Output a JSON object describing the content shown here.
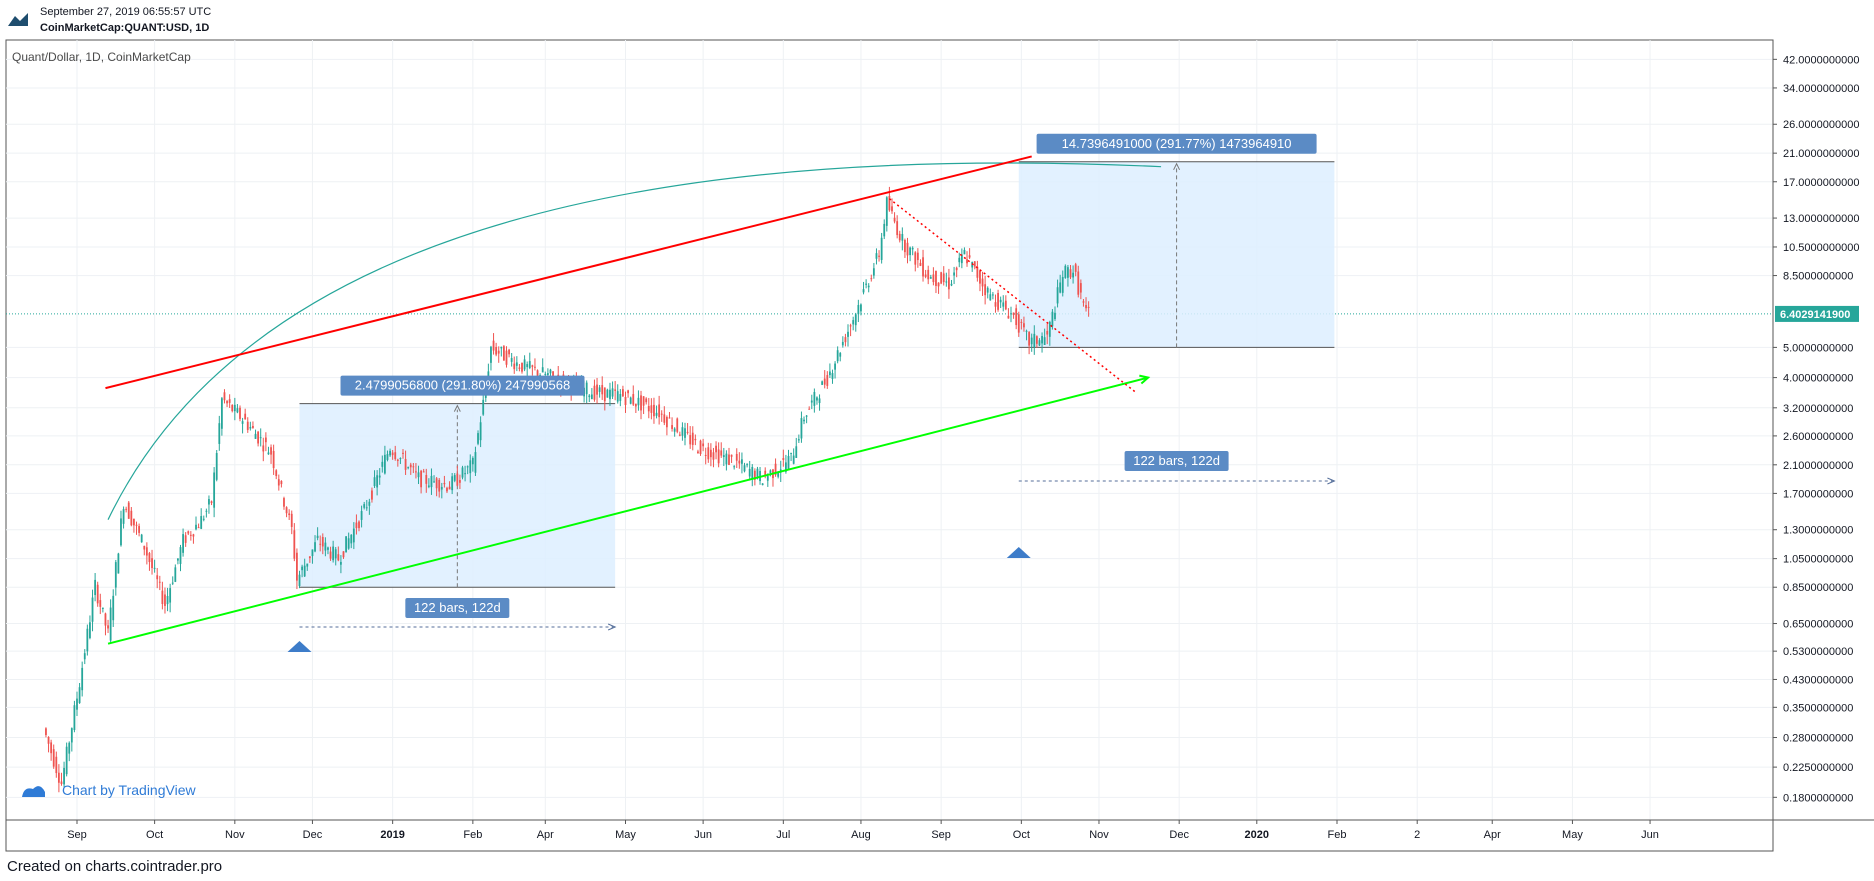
{
  "header": {
    "datetime": "September 27, 2019 06:55:57 UTC",
    "symbol": "CoinMarketCap:QUANT:USD, 1D"
  },
  "chart_title": "Quant/Dollar, 1D, CoinMarketCap",
  "watermark": "Chart by TradingView",
  "footer": "Created on charts.cointrader.pro",
  "colors": {
    "up": "#26a69a",
    "down": "#ef5350",
    "resistance": "#ff0000",
    "support": "#00ff00",
    "arc": "#26a69a",
    "box_fill": "#ddeeff",
    "label_bg": "#5b8bc5",
    "last_price_bg": "#26a69a",
    "arrow": "#3d7cc9"
  },
  "chart_data": {
    "type": "candlestick",
    "title": "Quant/Dollar, 1D, CoinMarketCap",
    "y_scale": "log",
    "ylim": [
      0.15,
      45
    ],
    "y_ticks": [
      "42.0000000000",
      "34.0000000000",
      "26.0000000000",
      "21.0000000000",
      "17.0000000000",
      "13.0000000000",
      "10.5000000000",
      "8.5000000000",
      "6.4029141900",
      "5.0000000000",
      "4.0000000000",
      "3.2000000000",
      "2.6000000000",
      "2.1000000000",
      "1.7000000000",
      "1.3000000000",
      "1.0500000000",
      "0.8500000000",
      "0.6500000000",
      "0.5300000000",
      "0.4300000000",
      "0.3500000000",
      "0.2800000000",
      "0.2250000000",
      "0.1800000000"
    ],
    "x_ticks": [
      "Sep",
      "Oct",
      "Nov",
      "Dec",
      "2019",
      "Feb",
      "Apr",
      "May",
      "Jun",
      "Jul",
      "Aug",
      "Sep",
      "Oct",
      "Nov",
      "Dec",
      "2020",
      "Feb",
      "2",
      "Apr",
      "May",
      "Jun"
    ],
    "last_price": "6.4029141900",
    "price_path": [
      [
        "2018-08-20",
        0.3
      ],
      [
        "2018-08-27",
        0.2
      ],
      [
        "2018-09-03",
        0.42
      ],
      [
        "2018-09-09",
        0.86
      ],
      [
        "2018-09-14",
        0.6
      ],
      [
        "2018-09-20",
        1.6
      ],
      [
        "2018-09-28",
        1.15
      ],
      [
        "2018-10-06",
        0.75
      ],
      [
        "2018-10-13",
        1.2
      ],
      [
        "2018-10-20",
        1.4
      ],
      [
        "2018-10-24",
        1.6
      ],
      [
        "2018-10-28",
        3.4
      ],
      [
        "2018-11-06",
        2.9
      ],
      [
        "2018-11-16",
        2.3
      ],
      [
        "2018-11-24",
        1.3
      ],
      [
        "2018-11-26",
        0.9
      ],
      [
        "2018-12-04",
        1.2
      ],
      [
        "2018-12-12",
        1.05
      ],
      [
        "2018-12-22",
        1.5
      ],
      [
        "2019-01-01",
        2.4
      ],
      [
        "2019-01-12",
        1.9
      ],
      [
        "2019-01-24",
        1.8
      ],
      [
        "2019-02-02",
        2.1
      ],
      [
        "2019-02-06",
        3.3
      ],
      [
        "2019-02-09",
        5.0
      ],
      [
        "2019-02-20",
        4.4
      ],
      [
        "2019-03-05",
        4.0
      ],
      [
        "2019-03-20",
        3.6
      ],
      [
        "2019-04-01",
        3.5
      ],
      [
        "2019-04-15",
        3.1
      ],
      [
        "2019-04-30",
        2.4
      ],
      [
        "2019-05-14",
        2.15
      ],
      [
        "2019-05-25",
        1.9
      ],
      [
        "2019-06-05",
        2.2
      ],
      [
        "2019-06-10",
        3.0
      ],
      [
        "2019-06-19",
        4.0
      ],
      [
        "2019-06-29",
        6.2
      ],
      [
        "2019-07-09",
        10.0
      ],
      [
        "2019-07-12",
        14.5
      ],
      [
        "2019-07-18",
        11.0
      ],
      [
        "2019-07-28",
        8.5
      ],
      [
        "2019-08-05",
        8.0
      ],
      [
        "2019-08-11",
        10.0
      ],
      [
        "2019-08-20",
        7.5
      ],
      [
        "2019-08-30",
        6.3
      ],
      [
        "2019-09-05",
        5.2
      ],
      [
        "2019-09-12",
        5.4
      ],
      [
        "2019-09-18",
        8.6
      ],
      [
        "2019-09-22",
        8.9
      ],
      [
        "2019-09-27",
        6.4
      ]
    ],
    "annotations": {
      "measure_1": {
        "from_date": "2018-11-26",
        "to_date": "2019-03-28",
        "low": 0.85,
        "high": 3.3,
        "price_label": "2.4799056800 (291.80%) 247990568",
        "range_label": "122 bars, 122d"
      },
      "measure_2": {
        "from_date": "2019-08-31",
        "to_date": "2019-12-31",
        "low": 5.0,
        "high": 19.7,
        "price_label": "14.7396491000 (291.77%) 1473964910",
        "range_label": "122 bars, 122d"
      },
      "resistance_line": [
        [
          "2018-09-12",
          3.7
        ],
        [
          "2019-09-05",
          20.5
        ]
      ],
      "support_line": [
        [
          "2018-09-13",
          0.56
        ],
        [
          "2019-10-20",
          4.0
        ]
      ],
      "dotted_line": [
        [
          "2019-07-12",
          15.0
        ],
        [
          "2019-10-15",
          3.6
        ]
      ],
      "arc_line": [
        [
          "2018-09-13",
          1.4
        ],
        [
          "2019-10-25",
          19.0
        ]
      ],
      "arrow_markers": [
        "2018-11-26",
        "2019-08-31"
      ]
    }
  }
}
